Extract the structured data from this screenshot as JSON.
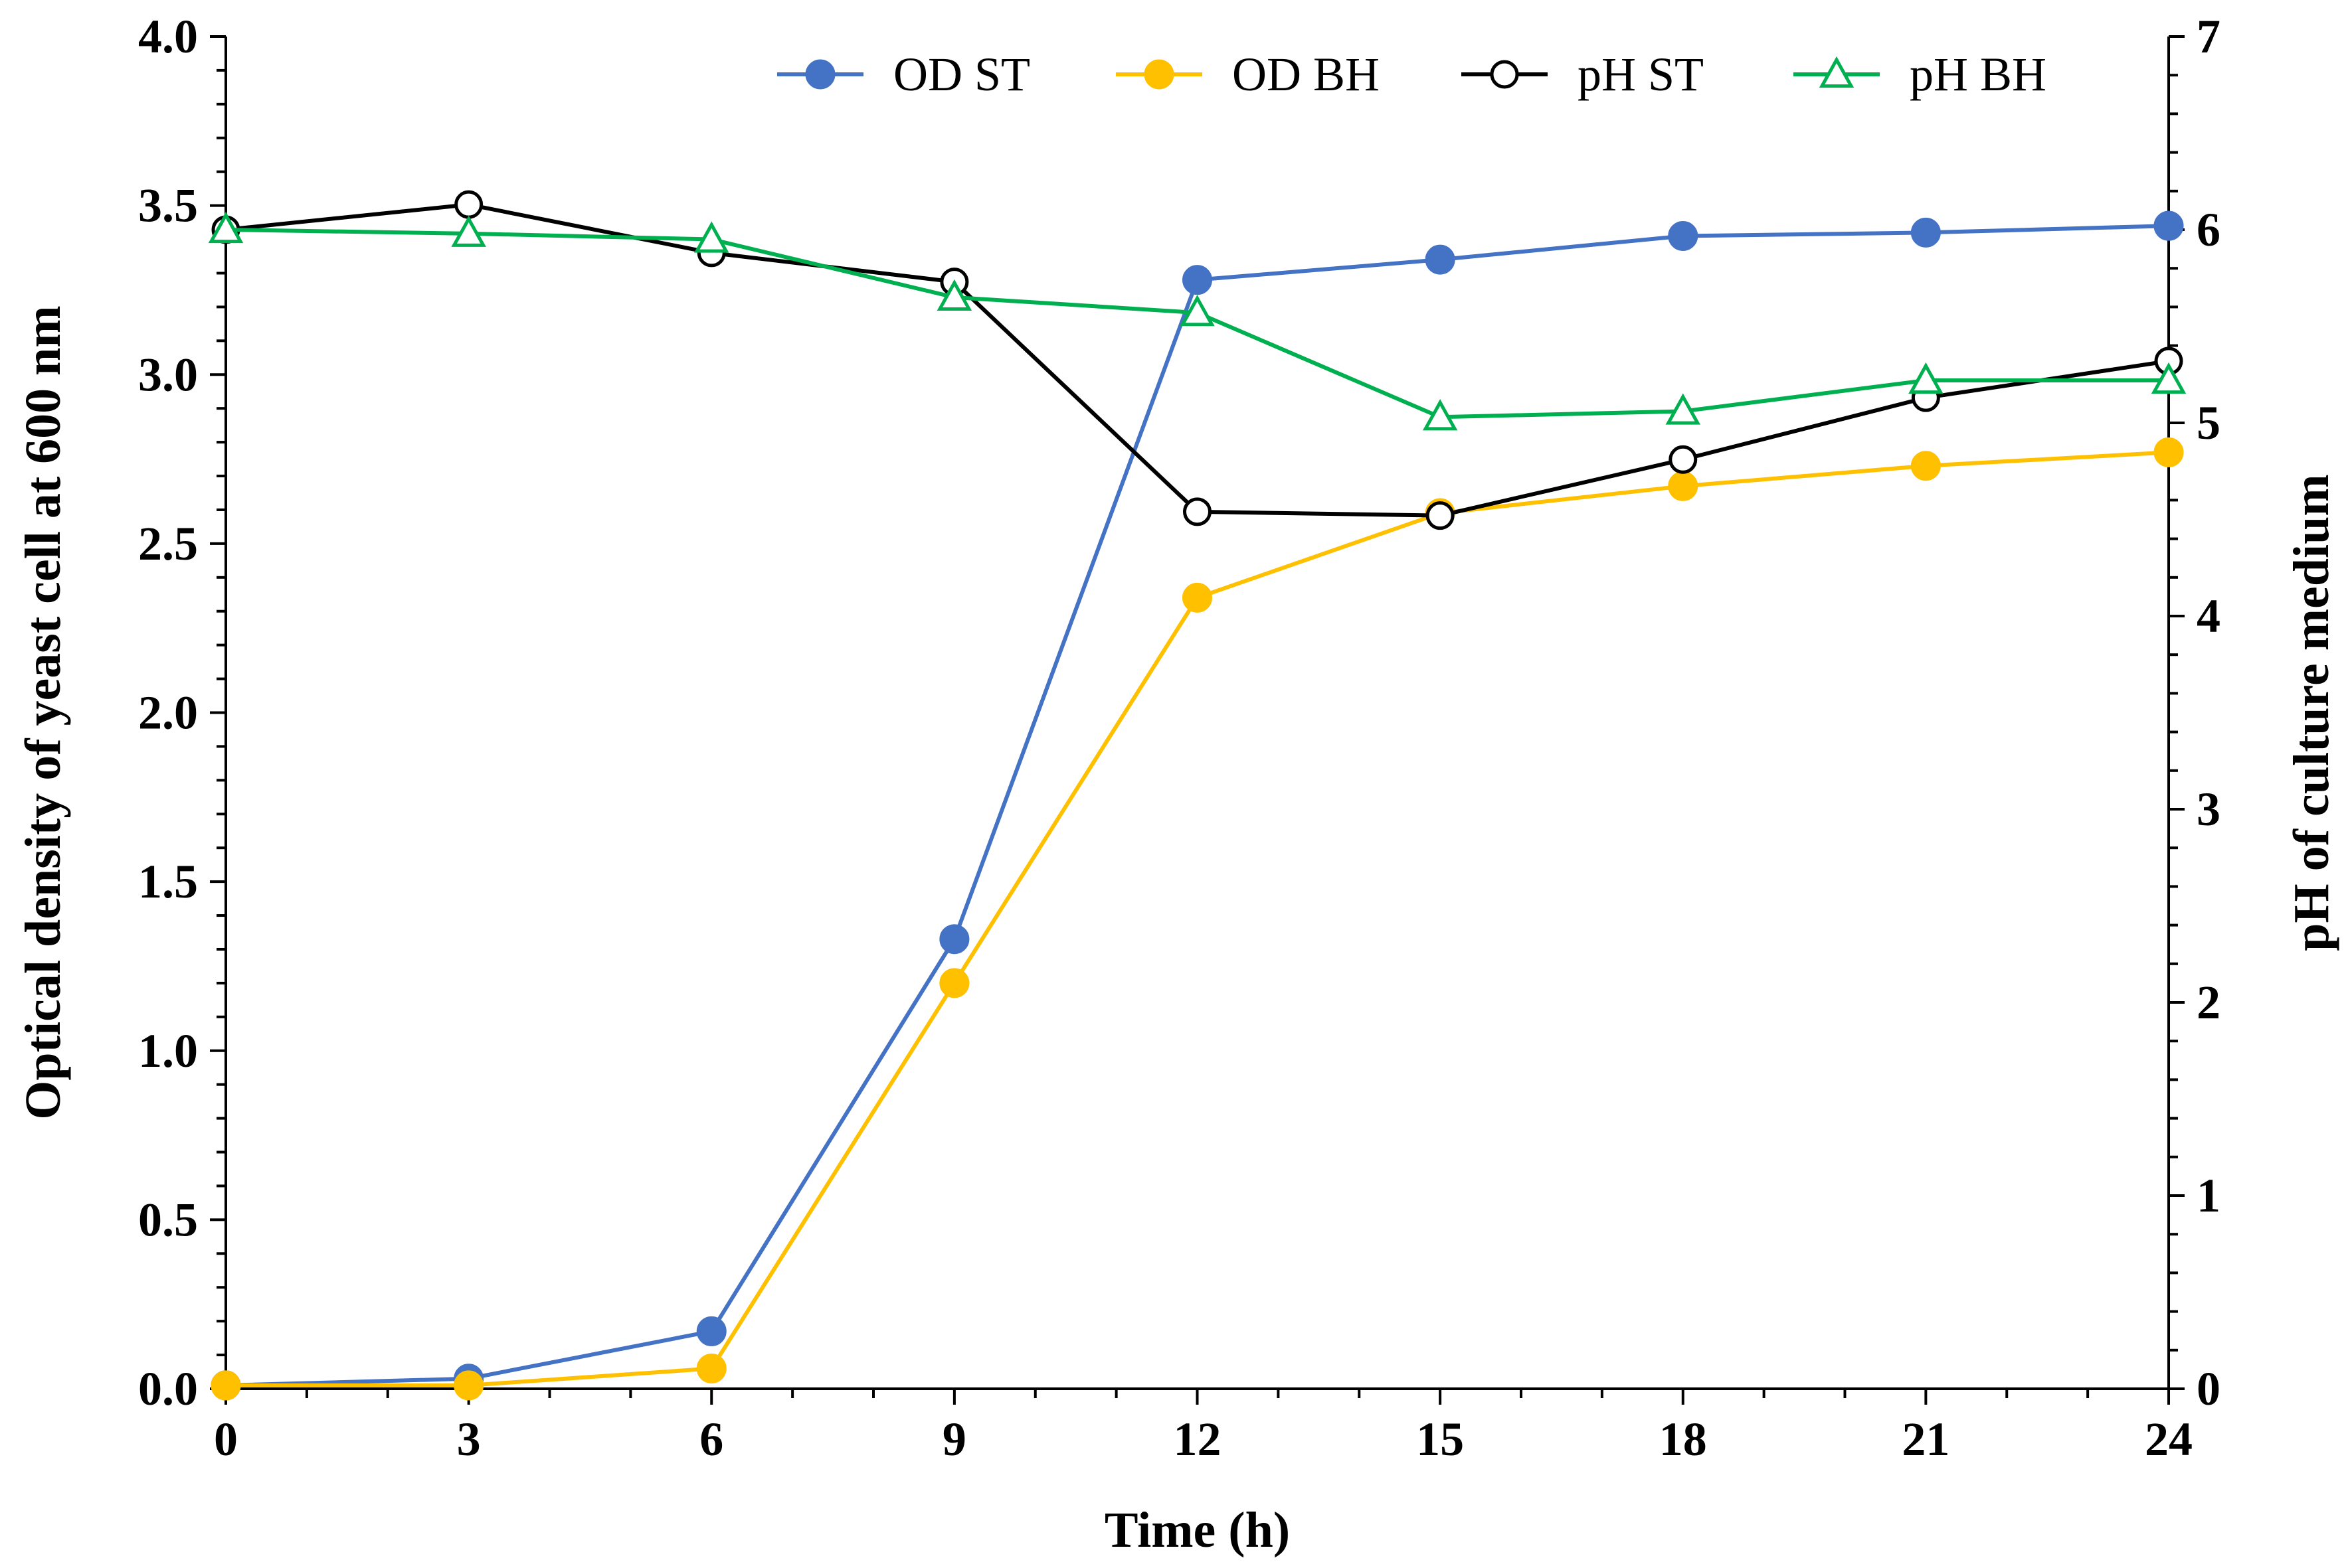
{
  "chart_data": {
    "type": "line",
    "xlabel": "Time (h)",
    "ylabel_left": "Optical density of yeast cell at 600 nm",
    "ylabel_right": "pH of culture medium",
    "x": [
      0,
      3,
      6,
      9,
      12,
      15,
      18,
      21,
      24
    ],
    "x_ticks": [
      "0",
      "3",
      "6",
      "9",
      "12",
      "15",
      "18",
      "21",
      "24"
    ],
    "xlim": [
      0,
      24
    ],
    "ylim_left": [
      0,
      4.0
    ],
    "ylim_right": [
      0,
      7
    ],
    "y_left_ticks": [
      "0.0",
      "0.5",
      "1.0",
      "1.5",
      "2.0",
      "2.5",
      "3.0",
      "3.5",
      "4.0"
    ],
    "y_right_ticks": [
      "0",
      "1",
      "2",
      "3",
      "4",
      "5",
      "6",
      "7"
    ],
    "legend_position": "top",
    "grid": false,
    "series": [
      {
        "name": "OD ST",
        "axis": "left",
        "color": "#4472C4",
        "marker": "filled-circle",
        "values": [
          0.01,
          0.03,
          0.17,
          1.33,
          3.28,
          3.34,
          3.41,
          3.42,
          3.44
        ]
      },
      {
        "name": "OD BH",
        "axis": "left",
        "color": "#FFC000",
        "marker": "filled-circle",
        "values": [
          0.01,
          0.01,
          0.06,
          1.2,
          2.34,
          2.59,
          2.67,
          2.73,
          2.77
        ]
      },
      {
        "name": "pH ST",
        "axis": "right",
        "color": "#000000",
        "marker": "open-circle",
        "values": [
          6.0,
          6.13,
          5.88,
          5.73,
          4.54,
          4.52,
          4.81,
          5.13,
          5.32
        ]
      },
      {
        "name": "pH BH",
        "axis": "right",
        "color": "#00B050",
        "marker": "open-triangle",
        "values": [
          6.0,
          5.98,
          5.95,
          5.65,
          5.57,
          5.03,
          5.06,
          5.22,
          5.22
        ]
      }
    ]
  }
}
